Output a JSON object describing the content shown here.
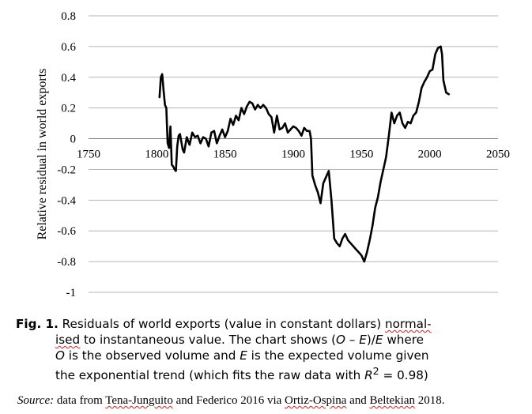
{
  "chart_data": {
    "type": "line",
    "ylabel": "Relative residual in world exports",
    "xlim": [
      1750,
      2050
    ],
    "ylim": [
      -1,
      0.8
    ],
    "x_ticks": [
      1750,
      1800,
      1850,
      1900,
      1950,
      2000,
      2050
    ],
    "y_ticks": [
      0.8,
      0.6,
      0.4,
      0.2,
      0,
      -0.2,
      -0.4,
      -0.6,
      -0.8,
      -1
    ],
    "x_tick_labels": [
      "1750",
      "1800",
      "1850",
      "1900",
      "1950",
      "2000",
      "2050"
    ],
    "y_tick_labels": [
      "0.8",
      "0.6",
      "0.4",
      "0.2",
      "0",
      "-0.2",
      "-0.4",
      "-0.6",
      "-0.8",
      "-1"
    ],
    "grid": "horizontal",
    "legend": "none",
    "line_color": "#000000",
    "series": [
      {
        "x": [
          1802,
          1803,
          1804,
          1805,
          1806,
          1807,
          1808,
          1809,
          1810,
          1811,
          1812,
          1813,
          1814,
          1815,
          1816,
          1817,
          1818,
          1819,
          1820,
          1822,
          1824,
          1826,
          1828,
          1830,
          1832,
          1834,
          1836,
          1838,
          1840,
          1842,
          1844,
          1846,
          1848,
          1850,
          1852,
          1854,
          1856,
          1858,
          1860,
          1862,
          1864,
          1866,
          1868,
          1870,
          1872,
          1874,
          1876,
          1878,
          1880,
          1882,
          1884,
          1886,
          1888,
          1890,
          1892,
          1894,
          1896,
          1898,
          1900,
          1902,
          1904,
          1906,
          1908,
          1910,
          1912,
          1913,
          1914,
          1916,
          1918,
          1920,
          1922,
          1924,
          1926,
          1928,
          1930,
          1932,
          1934,
          1936,
          1938,
          1940,
          1942,
          1944,
          1946,
          1948,
          1950,
          1952,
          1954,
          1956,
          1958,
          1960,
          1962,
          1964,
          1966,
          1968,
          1970,
          1972,
          1974,
          1976,
          1978,
          1980,
          1982,
          1984,
          1986,
          1988,
          1990,
          1992,
          1994,
          1996,
          1998,
          2000,
          2002,
          2004,
          2006,
          2008,
          2009,
          2010,
          2012,
          2014
        ],
        "y": [
          0.27,
          0.4,
          0.42,
          0.31,
          0.22,
          0.2,
          -0.03,
          -0.06,
          0.08,
          -0.17,
          -0.18,
          -0.2,
          -0.21,
          -0.05,
          0.02,
          0.03,
          -0.02,
          -0.07,
          -0.09,
          0.01,
          -0.04,
          0.04,
          0.01,
          0.02,
          -0.03,
          0.01,
          0.0,
          -0.05,
          0.04,
          0.05,
          -0.03,
          0.02,
          0.06,
          0.01,
          0.05,
          0.13,
          0.09,
          0.15,
          0.12,
          0.2,
          0.16,
          0.21,
          0.24,
          0.23,
          0.19,
          0.22,
          0.2,
          0.22,
          0.2,
          0.16,
          0.14,
          0.04,
          0.15,
          0.06,
          0.07,
          0.1,
          0.04,
          0.06,
          0.08,
          0.07,
          0.05,
          0.02,
          0.07,
          0.05,
          0.05,
          0.0,
          -0.24,
          -0.3,
          -0.35,
          -0.42,
          -0.29,
          -0.25,
          -0.21,
          -0.4,
          -0.65,
          -0.68,
          -0.7,
          -0.65,
          -0.62,
          -0.66,
          -0.68,
          -0.7,
          -0.72,
          -0.74,
          -0.76,
          -0.8,
          -0.74,
          -0.66,
          -0.57,
          -0.45,
          -0.38,
          -0.28,
          -0.2,
          -0.12,
          0.02,
          0.17,
          0.1,
          0.15,
          0.17,
          0.1,
          0.07,
          0.11,
          0.1,
          0.15,
          0.17,
          0.24,
          0.33,
          0.37,
          0.4,
          0.44,
          0.45,
          0.55,
          0.59,
          0.6,
          0.55,
          0.38,
          0.3,
          0.29
        ]
      }
    ]
  },
  "caption": {
    "label": "Fig. 1.",
    "l1_text": " Residuals of world exports (value in constant dollars) ",
    "l1_word": "normal-",
    "l2_word": "ised",
    "l2_a": " to instantaneous value. The chart shows (",
    "l2_O": "O",
    "l2_minus": " – ",
    "l2_E": "E",
    "l2_b": ")/",
    "l2_E2": "E",
    "l2_c": " where",
    "l3_O": "O",
    "l3_a": " is the observed volume and ",
    "l3_E": "E",
    "l3_b": " is the expected volume given",
    "l4_a": "the exponential trend (which fits the raw data with ",
    "l4_R": "R",
    "l4_sup": "2",
    "l4_b": " = 0.98)"
  },
  "source": {
    "label": "Source:",
    "a": " data from ",
    "n1": "Tena-Junguito",
    "b": " and Federico 2016 via ",
    "n2": "Ortiz-Ospina",
    "c": " and ",
    "n3": "Beltekian",
    "d": " 2018."
  }
}
